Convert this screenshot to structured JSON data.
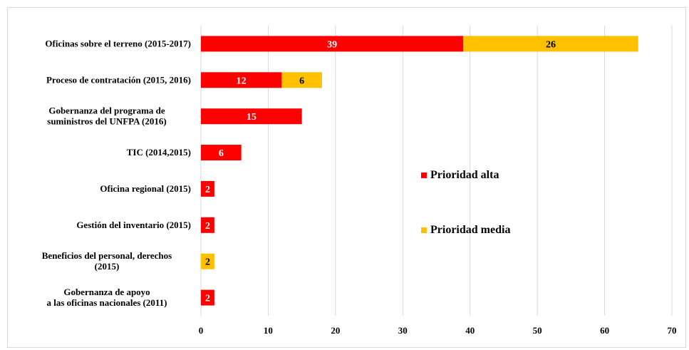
{
  "chart_data": {
    "type": "bar",
    "orientation": "horizontal",
    "stacked": true,
    "title": "",
    "xlabel": "",
    "ylabel": "",
    "categories": [
      [
        "Oficinas sobre el terreno (2015-2017)"
      ],
      [
        "Proceso de contratación (2015, 2016)"
      ],
      [
        "Gobernanza del programa de",
        "suministros del UNFPA (2016)"
      ],
      [
        "TIC (2014,2015)"
      ],
      [
        "Oficina regional (2015)"
      ],
      [
        "Gestión del inventario (2015)"
      ],
      [
        "Beneficios del personal, derechos",
        "(2015)"
      ],
      [
        "Gobernanza de apoyo",
        "a las oficinas nacionales (2011)"
      ]
    ],
    "series": [
      {
        "name": "Prioridad alta",
        "color": "#ff0000",
        "label_color": "#ffffff",
        "values": [
          39,
          12,
          15,
          6,
          2,
          2,
          0,
          2
        ]
      },
      {
        "name": "Prioridad media",
        "color": "#ffc000",
        "label_color": "#000000",
        "values": [
          26,
          6,
          0,
          0,
          0,
          0,
          2,
          0
        ]
      }
    ],
    "xlim": [
      0,
      70
    ],
    "xticks": [
      0,
      10,
      20,
      30,
      40,
      50,
      60,
      70
    ],
    "grid": true,
    "legend": "right"
  }
}
